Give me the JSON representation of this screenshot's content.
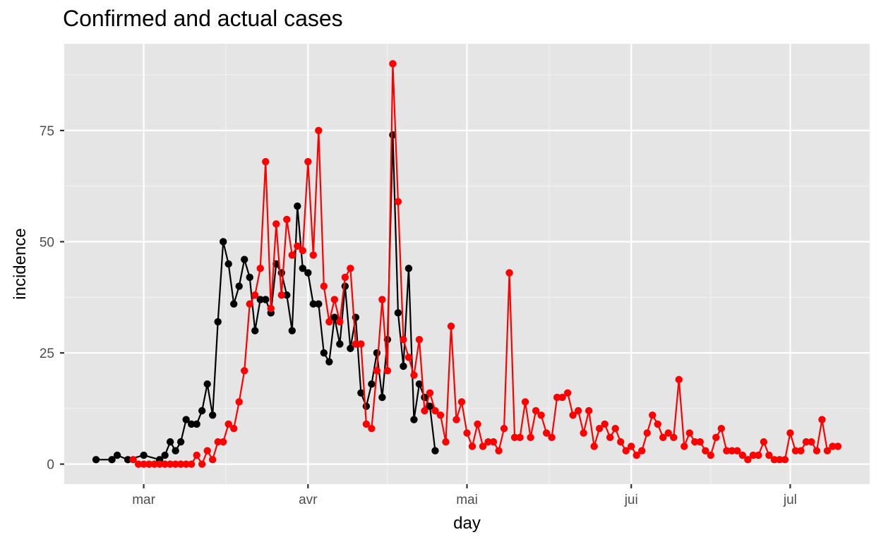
{
  "chart_data": {
    "type": "line",
    "title": "Confirmed and actual cases",
    "xlabel": "day",
    "ylabel": "incidence",
    "x_tick_labels": [
      "mar",
      "avr",
      "mai",
      "jui",
      "jul"
    ],
    "x_tick_dates": [
      "2020-03-01",
      "2020-04-01",
      "2020-05-01",
      "2020-06-01",
      "2020-07-01"
    ],
    "y_ticks": [
      0,
      25,
      50,
      75
    ],
    "xlim": [
      "2020-02-15",
      "2020-07-16"
    ],
    "ylim": [
      -4.5,
      94.5
    ],
    "grid": true,
    "panel_background": "#e5e5e5",
    "series": [
      {
        "color": "#000000",
        "points": [
          [
            "2020-02-21",
            1
          ],
          [
            "2020-02-24",
            1
          ],
          [
            "2020-02-25",
            2
          ],
          [
            "2020-02-27",
            1
          ],
          [
            "2020-03-01",
            2
          ],
          [
            "2020-03-04",
            1
          ],
          [
            "2020-03-05",
            2
          ],
          [
            "2020-03-06",
            5
          ],
          [
            "2020-03-07",
            3
          ],
          [
            "2020-03-08",
            5
          ],
          [
            "2020-03-09",
            10
          ],
          [
            "2020-03-10",
            9
          ],
          [
            "2020-03-11",
            9
          ],
          [
            "2020-03-12",
            12
          ],
          [
            "2020-03-13",
            18
          ],
          [
            "2020-03-14",
            11
          ],
          [
            "2020-03-15",
            32
          ],
          [
            "2020-03-16",
            50
          ],
          [
            "2020-03-17",
            45
          ],
          [
            "2020-03-18",
            36
          ],
          [
            "2020-03-19",
            40
          ],
          [
            "2020-03-20",
            46
          ],
          [
            "2020-03-21",
            42
          ],
          [
            "2020-03-22",
            30
          ],
          [
            "2020-03-23",
            37
          ],
          [
            "2020-03-24",
            37
          ],
          [
            "2020-03-25",
            34
          ],
          [
            "2020-03-26",
            45
          ],
          [
            "2020-03-27",
            43
          ],
          [
            "2020-03-28",
            38
          ],
          [
            "2020-03-29",
            30
          ],
          [
            "2020-03-30",
            58
          ],
          [
            "2020-03-31",
            44
          ],
          [
            "2020-04-01",
            43
          ],
          [
            "2020-04-02",
            36
          ],
          [
            "2020-04-03",
            36
          ],
          [
            "2020-04-04",
            25
          ],
          [
            "2020-04-05",
            23
          ],
          [
            "2020-04-06",
            33
          ],
          [
            "2020-04-07",
            27
          ],
          [
            "2020-04-08",
            40
          ],
          [
            "2020-04-09",
            26
          ],
          [
            "2020-04-10",
            33
          ],
          [
            "2020-04-11",
            16
          ],
          [
            "2020-04-12",
            13
          ],
          [
            "2020-04-13",
            18
          ],
          [
            "2020-04-14",
            25
          ],
          [
            "2020-04-15",
            15
          ],
          [
            "2020-04-16",
            28
          ],
          [
            "2020-04-17",
            74
          ],
          [
            "2020-04-18",
            34
          ],
          [
            "2020-04-19",
            22
          ],
          [
            "2020-04-20",
            44
          ],
          [
            "2020-04-21",
            10
          ],
          [
            "2020-04-22",
            18
          ],
          [
            "2020-04-23",
            15
          ],
          [
            "2020-04-24",
            13
          ],
          [
            "2020-04-25",
            3
          ]
        ]
      },
      {
        "color": "#ff0000",
        "points": [
          [
            "2020-02-28",
            1
          ],
          [
            "2020-02-29",
            0
          ],
          [
            "2020-03-01",
            0
          ],
          [
            "2020-03-02",
            0
          ],
          [
            "2020-03-03",
            0
          ],
          [
            "2020-03-04",
            0
          ],
          [
            "2020-03-05",
            0
          ],
          [
            "2020-03-06",
            0
          ],
          [
            "2020-03-07",
            0
          ],
          [
            "2020-03-08",
            0
          ],
          [
            "2020-03-09",
            0
          ],
          [
            "2020-03-10",
            0
          ],
          [
            "2020-03-11",
            2
          ],
          [
            "2020-03-12",
            0
          ],
          [
            "2020-03-13",
            3
          ],
          [
            "2020-03-14",
            1
          ],
          [
            "2020-03-15",
            5
          ],
          [
            "2020-03-16",
            5
          ],
          [
            "2020-03-17",
            9
          ],
          [
            "2020-03-18",
            8
          ],
          [
            "2020-03-19",
            14
          ],
          [
            "2020-03-20",
            21
          ],
          [
            "2020-03-21",
            36
          ],
          [
            "2020-03-22",
            38
          ],
          [
            "2020-03-23",
            44
          ],
          [
            "2020-03-24",
            68
          ],
          [
            "2020-03-25",
            35
          ],
          [
            "2020-03-26",
            54
          ],
          [
            "2020-03-27",
            38
          ],
          [
            "2020-03-28",
            55
          ],
          [
            "2020-03-29",
            47
          ],
          [
            "2020-03-30",
            49
          ],
          [
            "2020-03-31",
            48
          ],
          [
            "2020-04-01",
            68
          ],
          [
            "2020-04-02",
            47
          ],
          [
            "2020-04-03",
            75
          ],
          [
            "2020-04-04",
            40
          ],
          [
            "2020-04-05",
            32
          ],
          [
            "2020-04-06",
            37
          ],
          [
            "2020-04-07",
            32
          ],
          [
            "2020-04-08",
            42
          ],
          [
            "2020-04-09",
            44
          ],
          [
            "2020-04-10",
            27
          ],
          [
            "2020-04-11",
            27
          ],
          [
            "2020-04-12",
            9
          ],
          [
            "2020-04-13",
            8
          ],
          [
            "2020-04-14",
            21
          ],
          [
            "2020-04-15",
            37
          ],
          [
            "2020-04-16",
            21
          ],
          [
            "2020-04-17",
            90
          ],
          [
            "2020-04-18",
            59
          ],
          [
            "2020-04-19",
            28
          ],
          [
            "2020-04-20",
            24
          ],
          [
            "2020-04-21",
            20
          ],
          [
            "2020-04-22",
            28
          ],
          [
            "2020-04-23",
            12
          ],
          [
            "2020-04-24",
            16
          ],
          [
            "2020-04-25",
            12
          ],
          [
            "2020-04-26",
            11
          ],
          [
            "2020-04-27",
            5
          ],
          [
            "2020-04-28",
            31
          ],
          [
            "2020-04-29",
            10
          ],
          [
            "2020-04-30",
            14
          ],
          [
            "2020-05-01",
            7
          ],
          [
            "2020-05-02",
            4
          ],
          [
            "2020-05-03",
            9
          ],
          [
            "2020-05-04",
            4
          ],
          [
            "2020-05-05",
            5
          ],
          [
            "2020-05-06",
            5
          ],
          [
            "2020-05-07",
            3
          ],
          [
            "2020-05-08",
            8
          ],
          [
            "2020-05-09",
            43
          ],
          [
            "2020-05-10",
            6
          ],
          [
            "2020-05-11",
            6
          ],
          [
            "2020-05-12",
            14
          ],
          [
            "2020-05-13",
            6
          ],
          [
            "2020-05-14",
            12
          ],
          [
            "2020-05-15",
            11
          ],
          [
            "2020-05-16",
            7
          ],
          [
            "2020-05-17",
            6
          ],
          [
            "2020-05-18",
            15
          ],
          [
            "2020-05-19",
            15
          ],
          [
            "2020-05-20",
            16
          ],
          [
            "2020-05-21",
            11
          ],
          [
            "2020-05-22",
            12
          ],
          [
            "2020-05-23",
            7
          ],
          [
            "2020-05-24",
            12
          ],
          [
            "2020-05-25",
            4
          ],
          [
            "2020-05-26",
            8
          ],
          [
            "2020-05-27",
            9
          ],
          [
            "2020-05-28",
            6
          ],
          [
            "2020-05-29",
            8
          ],
          [
            "2020-05-30",
            5
          ],
          [
            "2020-05-31",
            3
          ],
          [
            "2020-06-01",
            4
          ],
          [
            "2020-06-02",
            2
          ],
          [
            "2020-06-03",
            3
          ],
          [
            "2020-06-04",
            7
          ],
          [
            "2020-06-05",
            11
          ],
          [
            "2020-06-06",
            9
          ],
          [
            "2020-06-07",
            6
          ],
          [
            "2020-06-08",
            7
          ],
          [
            "2020-06-09",
            6
          ],
          [
            "2020-06-10",
            19
          ],
          [
            "2020-06-11",
            4
          ],
          [
            "2020-06-12",
            7
          ],
          [
            "2020-06-13",
            5
          ],
          [
            "2020-06-14",
            5
          ],
          [
            "2020-06-15",
            3
          ],
          [
            "2020-06-16",
            2
          ],
          [
            "2020-06-17",
            6
          ],
          [
            "2020-06-18",
            8
          ],
          [
            "2020-06-19",
            3
          ],
          [
            "2020-06-20",
            3
          ],
          [
            "2020-06-21",
            3
          ],
          [
            "2020-06-22",
            2
          ],
          [
            "2020-06-23",
            1
          ],
          [
            "2020-06-24",
            2
          ],
          [
            "2020-06-25",
            2
          ],
          [
            "2020-06-26",
            5
          ],
          [
            "2020-06-27",
            2
          ],
          [
            "2020-06-28",
            1
          ],
          [
            "2020-06-29",
            1
          ],
          [
            "2020-06-30",
            1
          ],
          [
            "2020-07-01",
            7
          ],
          [
            "2020-07-02",
            3
          ],
          [
            "2020-07-03",
            3
          ],
          [
            "2020-07-04",
            5
          ],
          [
            "2020-07-05",
            5
          ],
          [
            "2020-07-06",
            3
          ],
          [
            "2020-07-07",
            10
          ],
          [
            "2020-07-08",
            3
          ],
          [
            "2020-07-09",
            4
          ],
          [
            "2020-07-10",
            4
          ]
        ]
      }
    ]
  }
}
